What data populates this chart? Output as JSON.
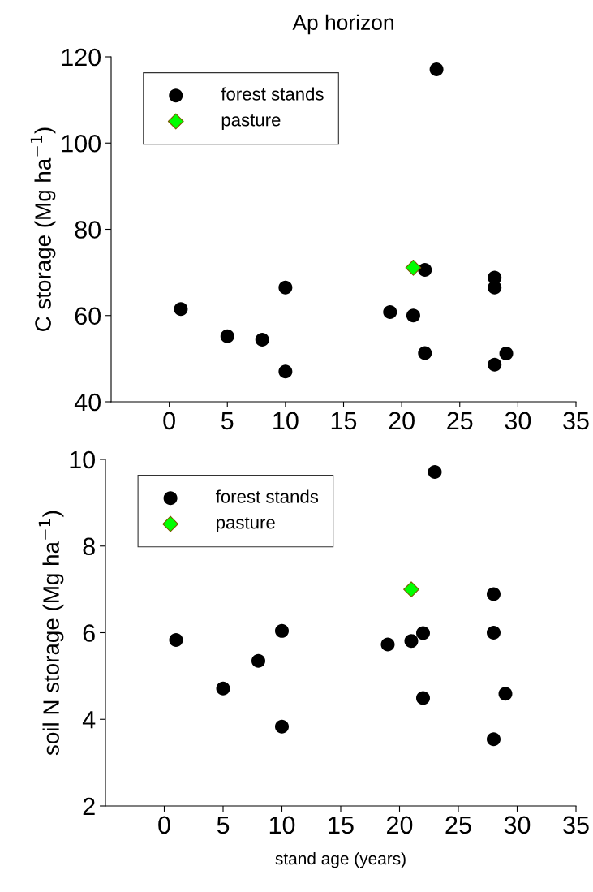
{
  "chart_data": [
    {
      "type": "scatter",
      "title": "Ap horizon",
      "ylabel": "C storage (Mg ha$^{−1}$)",
      "xlim": [
        -5,
        35
      ],
      "xticks": [
        0,
        5,
        10,
        15,
        20,
        25,
        30,
        35
      ],
      "ylim": [
        40,
        120
      ],
      "yticks": [
        40,
        60,
        80,
        100,
        120
      ],
      "legend": "top left",
      "grid": false,
      "series": [
        {
          "name": "forest stands",
          "color": "#000000",
          "marker": "circle",
          "x": [
            1,
            5,
            8,
            10,
            10,
            19,
            21,
            22,
            22,
            23,
            28,
            28,
            28,
            29
          ],
          "values": [
            61.5,
            55.2,
            54.4,
            66.5,
            47.0,
            60.8,
            60.0,
            70.6,
            51.3,
            117.1,
            68.8,
            66.5,
            48.6,
            51.2
          ]
        },
        {
          "name": "pasture",
          "color": "#00ff00",
          "marker": "diamond",
          "x": [
            21
          ],
          "values": [
            71.1
          ]
        }
      ]
    },
    {
      "type": "scatter",
      "xlabel": "stand age (years)",
      "ylabel": "soil N storage (Mg ha$^{−1}$)",
      "xlim": [
        -5,
        35
      ],
      "xticks": [
        0,
        5,
        10,
        15,
        20,
        25,
        30,
        35
      ],
      "ylim": [
        2,
        10
      ],
      "yticks": [
        2,
        4,
        6,
        8,
        10
      ],
      "legend": "top left",
      "grid": false,
      "series": [
        {
          "name": "forest stands",
          "color": "#000000",
          "marker": "circle",
          "x": [
            1,
            5,
            8,
            10,
            10,
            19,
            21,
            22,
            22,
            23,
            28,
            28,
            28,
            29
          ],
          "values": [
            5.83,
            4.71,
            5.35,
            6.04,
            3.83,
            5.73,
            5.81,
            5.99,
            4.49,
            9.71,
            6.89,
            6.0,
            3.54,
            4.59
          ]
        },
        {
          "name": "pasture",
          "color": "#00ff00",
          "marker": "diamond",
          "x": [
            21
          ],
          "values": [
            7.0
          ]
        }
      ]
    }
  ]
}
